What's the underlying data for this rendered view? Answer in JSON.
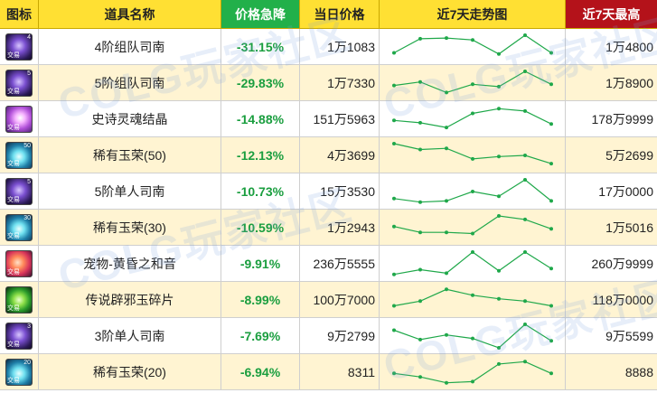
{
  "header": {
    "icon": "图标",
    "name": "道具名称",
    "drop": "价格急降",
    "price": "当日价格",
    "trend": "近7天走势图",
    "max": "近7天最高"
  },
  "colors": {
    "header_yellow": "#ffe033",
    "header_green": "#22b04a",
    "header_red": "#b4121a",
    "drop_text": "#1a9e3f",
    "sparkline": "#1fa84a",
    "row_alt": "#fff4d2"
  },
  "watermark": "COLG玩家社区",
  "rows": [
    {
      "icon": "purple-armor-icon",
      "icon_badge": "交易",
      "icon_num": "4",
      "name": "4阶组队司南",
      "drop": "-31.15%",
      "price": "1万1083",
      "max": "1万4800",
      "trend": [
        0.25,
        0.85,
        0.88,
        0.8,
        0.2,
        1.0,
        0.25
      ]
    },
    {
      "icon": "purple-armor-icon",
      "icon_badge": "交易",
      "icon_num": "5",
      "name": "5阶组队司南",
      "drop": "-29.83%",
      "price": "1万7330",
      "max": "1万8900",
      "trend": [
        0.4,
        0.55,
        0.1,
        0.45,
        0.35,
        1.0,
        0.45
      ]
    },
    {
      "icon": "pink-crystal-icon",
      "icon_badge": "交易",
      "icon_num": "",
      "name": "史诗灵魂结晶",
      "drop": "-14.88%",
      "price": "151万5963",
      "max": "178万9999",
      "trend": [
        0.45,
        0.35,
        0.15,
        0.75,
        0.95,
        0.85,
        0.3
      ]
    },
    {
      "icon": "blue-jade-icon",
      "icon_badge": "交易",
      "icon_num": "50",
      "name": "稀有玉荣(50)",
      "drop": "-12.13%",
      "price": "4万3699",
      "max": "5万2699",
      "trend": [
        1.0,
        0.75,
        0.8,
        0.35,
        0.45,
        0.5,
        0.15
      ]
    },
    {
      "icon": "purple-armor-icon",
      "icon_badge": "交易",
      "icon_num": "5",
      "name": "5阶单人司南",
      "drop": "-10.73%",
      "price": "15万3530",
      "max": "17万0000",
      "trend": [
        0.2,
        0.05,
        0.1,
        0.5,
        0.3,
        1.0,
        0.1
      ]
    },
    {
      "icon": "blue-jade-icon",
      "icon_badge": "交易",
      "icon_num": "30",
      "name": "稀有玉荣(30)",
      "drop": "-10.59%",
      "price": "1万2943",
      "max": "1万5016",
      "trend": [
        0.55,
        0.3,
        0.3,
        0.25,
        1.0,
        0.85,
        0.45
      ]
    },
    {
      "icon": "orange-pet-icon",
      "icon_badge": "交易",
      "icon_num": "",
      "name": "宠物-黄昏之和音",
      "drop": "-9.91%",
      "price": "236万5555",
      "max": "260万9999",
      "trend": [
        0.05,
        0.25,
        0.1,
        1.0,
        0.2,
        1.0,
        0.3
      ]
    },
    {
      "icon": "green-shard-icon",
      "icon_badge": "交易",
      "icon_num": "",
      "name": "传说辟邪玉碎片",
      "drop": "-8.99%",
      "price": "100万7000",
      "max": "118万0000",
      "trend": [
        0.25,
        0.45,
        0.95,
        0.7,
        0.55,
        0.45,
        0.25
      ]
    },
    {
      "icon": "purple-armor-icon",
      "icon_badge": "交易",
      "icon_num": "3",
      "name": "3阶单人司南",
      "drop": "-7.69%",
      "price": "9万2799",
      "max": "9万5599",
      "trend": [
        0.75,
        0.35,
        0.55,
        0.4,
        0.0,
        1.0,
        0.3
      ]
    },
    {
      "icon": "blue-jade-icon",
      "icon_badge": "交易",
      "icon_num": "20",
      "name": "稀有玉荣(20)",
      "drop": "-6.94%",
      "price": "8311",
      "max": "8888",
      "trend": [
        0.45,
        0.3,
        0.05,
        0.1,
        0.85,
        0.95,
        0.45
      ]
    }
  ]
}
